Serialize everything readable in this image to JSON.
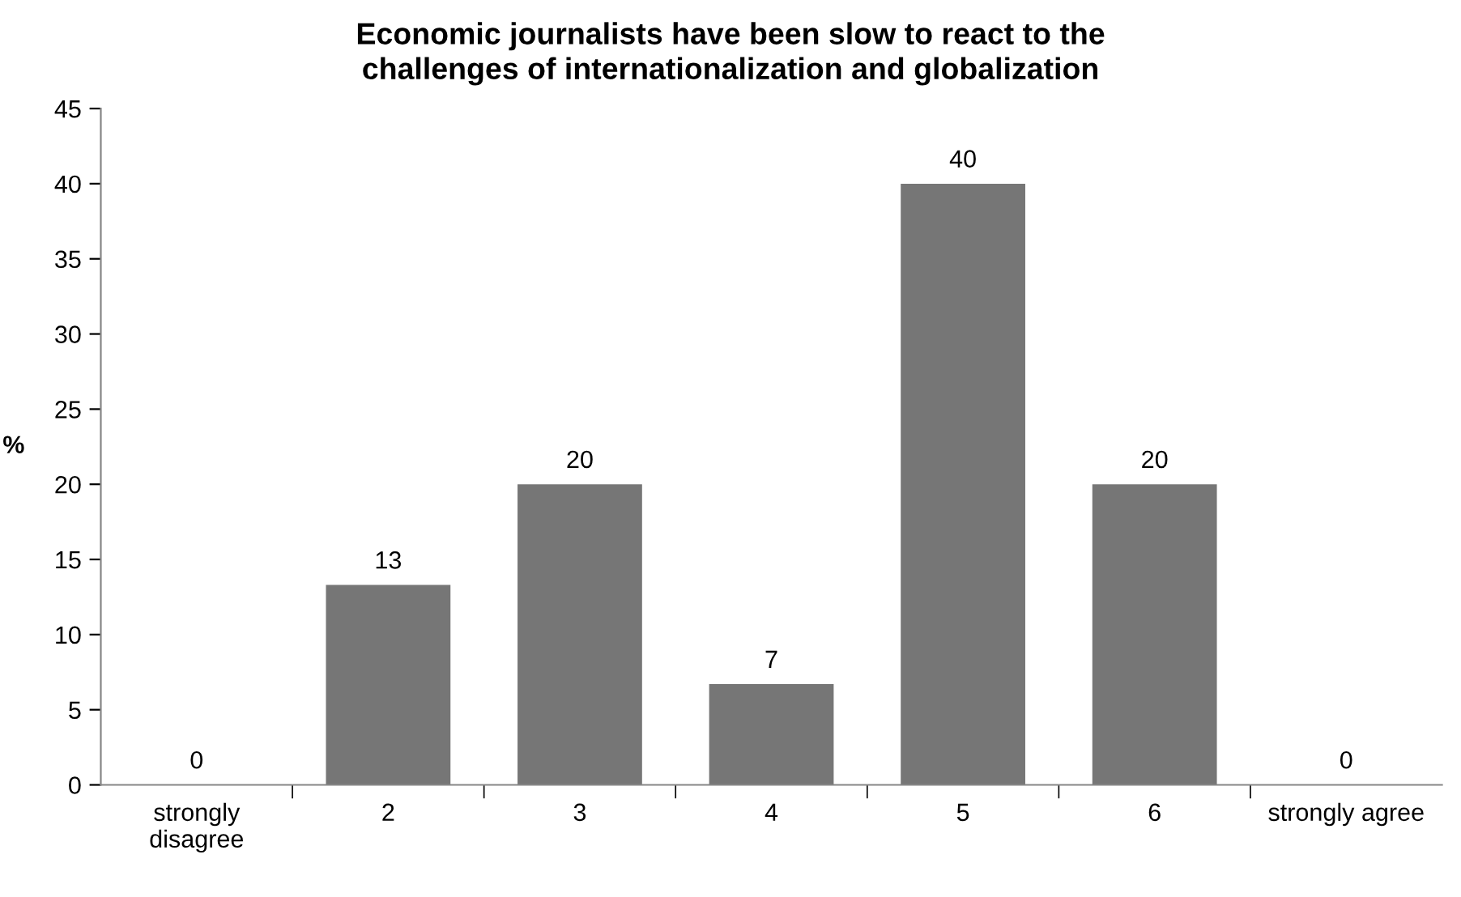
{
  "chart_data": {
    "type": "bar",
    "title": "Economic journalists have been slow to react to the challenges of internationalization and globalization",
    "ylabel": "%",
    "categories": [
      "strongly disagree",
      "2",
      "3",
      "4",
      "5",
      "6",
      "strongly agree"
    ],
    "values": [
      0,
      13.3,
      20,
      6.7,
      40,
      20,
      0
    ],
    "value_labels": [
      "0",
      "13",
      "20",
      "7",
      "40",
      "20",
      "0"
    ],
    "color": "#767676",
    "ylim": [
      0,
      45
    ],
    "yticks": [
      0,
      5,
      10,
      15,
      20,
      25,
      30,
      35,
      40,
      45
    ],
    "grid": false,
    "legend": false
  }
}
